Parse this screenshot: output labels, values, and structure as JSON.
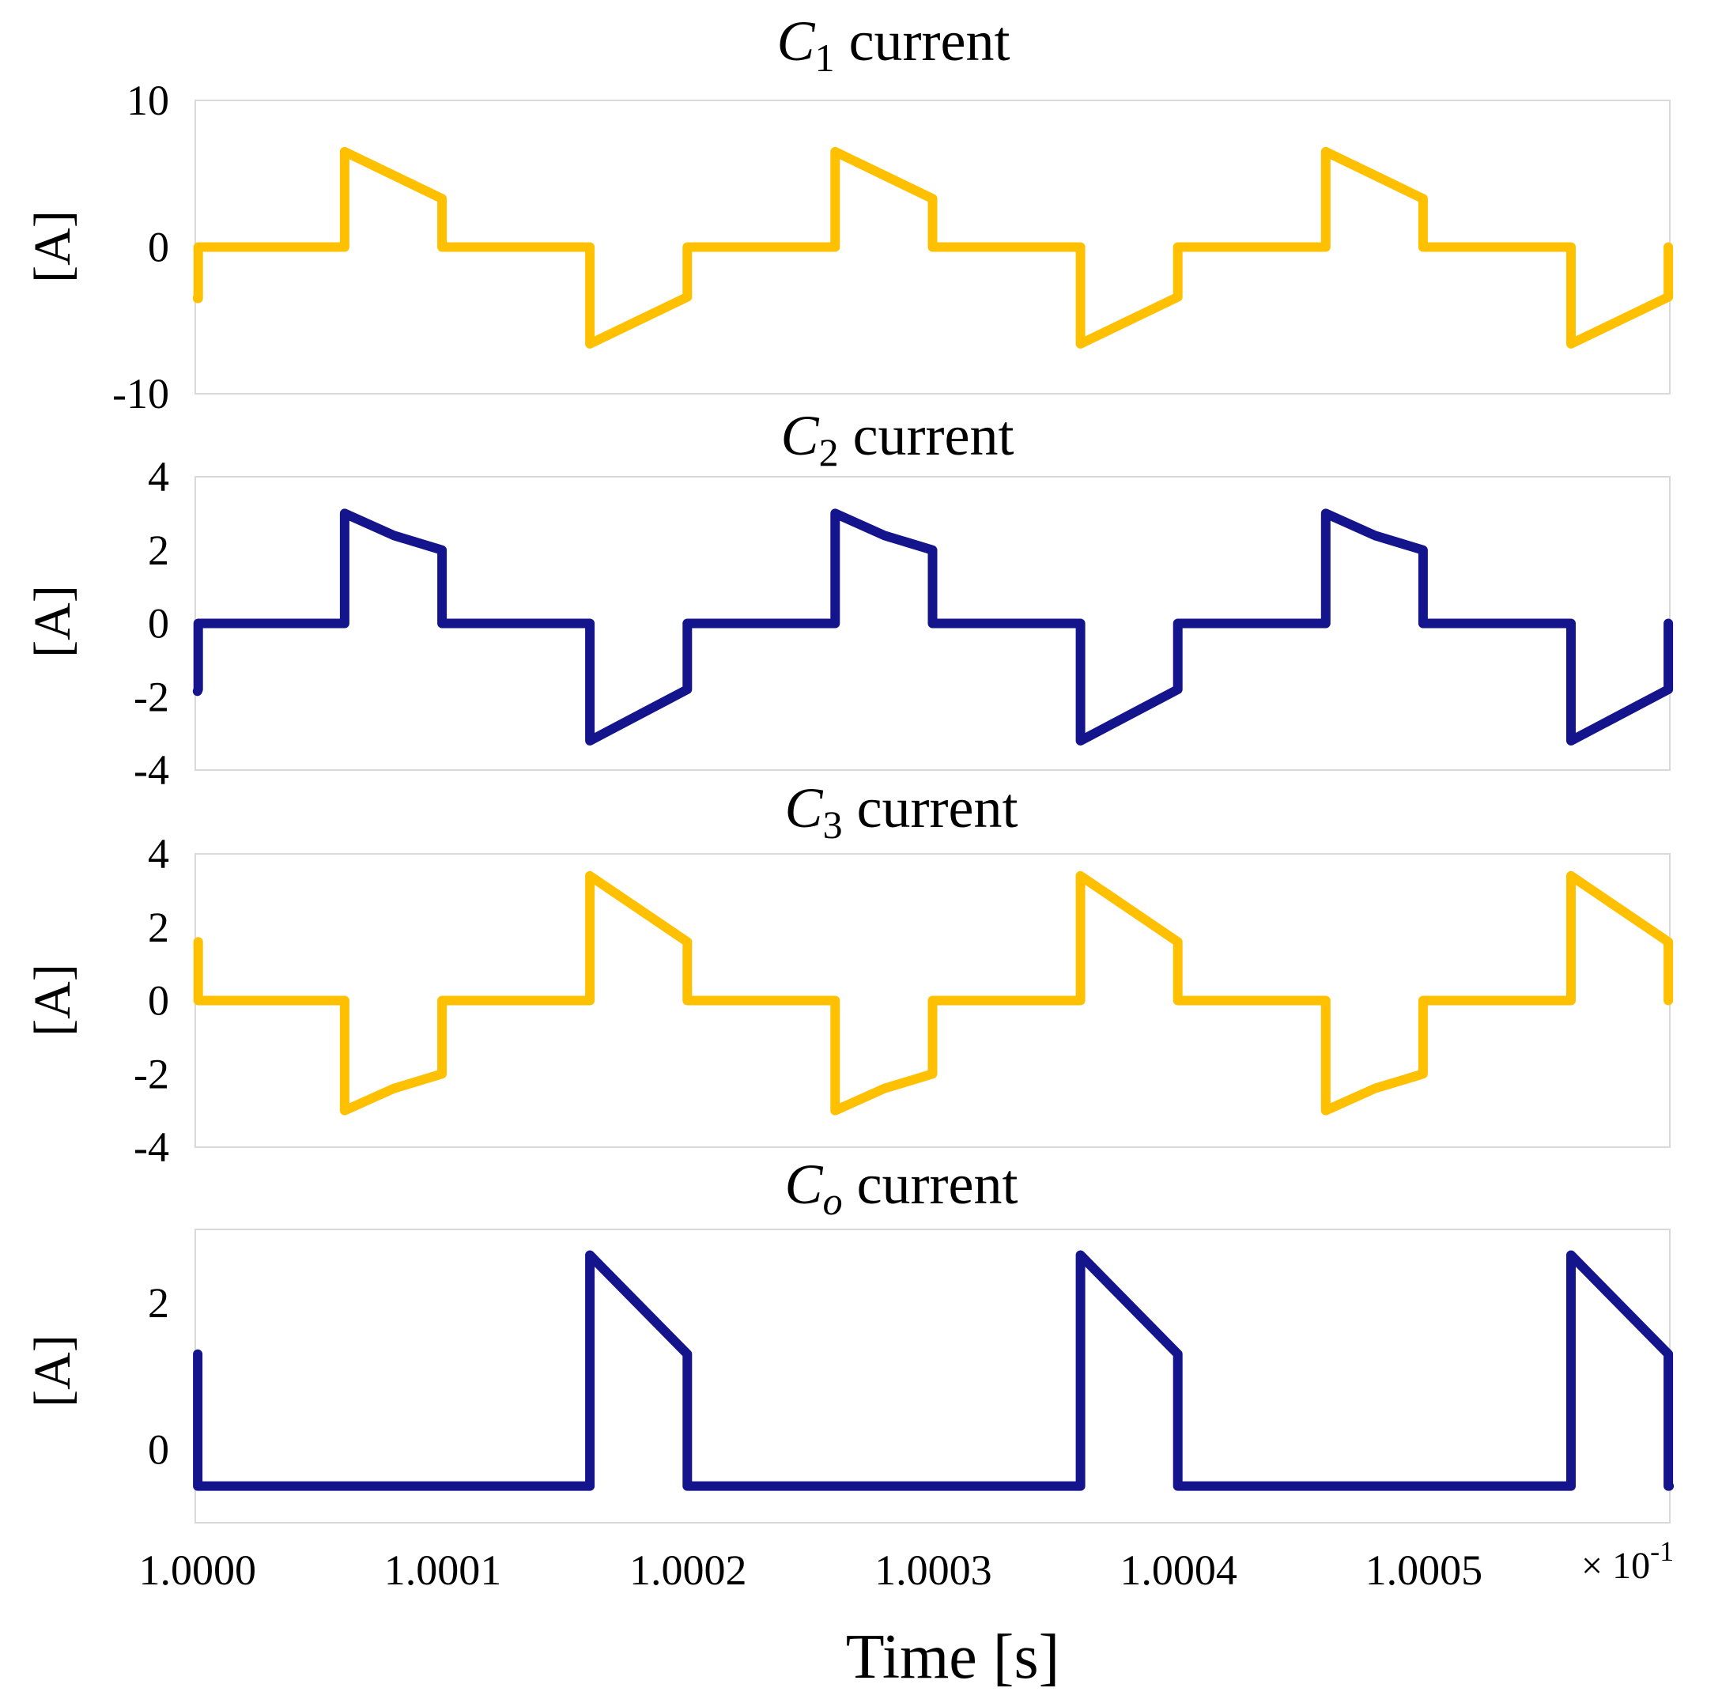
{
  "chart_data": [
    {
      "type": "line",
      "title": {
        "symbol": "C",
        "sub": "1",
        "sub_italic": false,
        "text": " current"
      },
      "ylabel": "[A]",
      "ylim": [
        -10,
        10
      ],
      "yticks": [
        10,
        0,
        -10
      ],
      "ytick_labels": [
        "10",
        "0",
        "-10"
      ],
      "color": "#FFC000",
      "series": [
        {
          "name": "C1 current",
          "x": [
            1.0,
            1.0000003,
            1.0000003,
            1.00006,
            1.00006,
            1.0000997,
            1.0000997,
            1.00016,
            1.00016,
            1.0001997,
            1.0001997,
            1.00026,
            1.00026,
            1.0002997,
            1.0002997,
            1.00036,
            1.00036,
            1.0003997,
            1.0003997,
            1.00046,
            1.00046,
            1.0004997,
            1.0004997,
            1.00056,
            1.00056,
            1.0005997,
            1.0005997
          ],
          "y": [
            -3.5,
            -3.5,
            0,
            0,
            6.5,
            3.3,
            0,
            0,
            -6.6,
            -3.4,
            0,
            0,
            6.5,
            3.3,
            0,
            0,
            -6.6,
            -3.4,
            0,
            0,
            6.5,
            3.3,
            0,
            0,
            -6.6,
            -3.4,
            0
          ]
        }
      ]
    },
    {
      "type": "line",
      "title": {
        "symbol": "C",
        "sub": "2",
        "sub_italic": false,
        "text": " current"
      },
      "ylabel": "[A]",
      "ylim": [
        -4,
        4
      ],
      "yticks": [
        4,
        2,
        0,
        -2,
        -4
      ],
      "ytick_labels": [
        "4",
        "2",
        "0",
        "-2",
        "-4"
      ],
      "color": "#14148C",
      "series": [
        {
          "name": "C2 current",
          "x": [
            1.0,
            1.0000003,
            1.0000003,
            1.00006,
            1.00006,
            1.00008,
            1.0000997,
            1.0000997,
            1.00016,
            1.00016,
            1.0001997,
            1.0001997,
            1.00026,
            1.00026,
            1.00028,
            1.0002997,
            1.0002997,
            1.00036,
            1.00036,
            1.0003997,
            1.0003997,
            1.00046,
            1.00046,
            1.00048,
            1.0004997,
            1.0004997,
            1.00056,
            1.00056,
            1.0005997,
            1.0005997
          ],
          "y": [
            -1.85,
            -1.8,
            0,
            0,
            3.0,
            2.4,
            2.0,
            0,
            0,
            -3.2,
            -1.8,
            0,
            0,
            3.0,
            2.4,
            2.0,
            0,
            0,
            -3.2,
            -1.8,
            0,
            0,
            3.0,
            2.4,
            2.0,
            0,
            0,
            -3.2,
            -1.8,
            0
          ]
        }
      ]
    },
    {
      "type": "line",
      "title": {
        "symbol": "C",
        "sub": "3",
        "sub_italic": false,
        "text": " current"
      },
      "ylabel": "[A]",
      "ylim": [
        -4,
        4
      ],
      "yticks": [
        4,
        2,
        0,
        -2,
        -4
      ],
      "ytick_labels": [
        "4",
        "2",
        "0",
        "-2",
        "-4"
      ],
      "color": "#FFC000",
      "series": [
        {
          "name": "C3 current",
          "x": [
            1.0000003,
            1.0000003,
            1.00006,
            1.00006,
            1.00008,
            1.0000997,
            1.0000997,
            1.00016,
            1.00016,
            1.0001997,
            1.0001997,
            1.00026,
            1.00026,
            1.00028,
            1.0002997,
            1.0002997,
            1.00036,
            1.00036,
            1.0003997,
            1.0003997,
            1.00046,
            1.00046,
            1.00048,
            1.0004997,
            1.0004997,
            1.00056,
            1.00056,
            1.0005997,
            1.0005997
          ],
          "y": [
            1.6,
            0,
            0,
            -3.0,
            -2.4,
            -2.0,
            0,
            0,
            3.4,
            1.6,
            0,
            0,
            -3.0,
            -2.4,
            -2.0,
            0,
            0,
            3.4,
            1.6,
            0,
            0,
            -3.0,
            -2.4,
            -2.0,
            0,
            0,
            3.4,
            1.6,
            0
          ]
        }
      ]
    },
    {
      "type": "line",
      "title": {
        "symbol": "C",
        "sub": "o",
        "sub_italic": true,
        "text": " current"
      },
      "ylabel": "[A]",
      "ylim": [
        -1,
        3
      ],
      "yticks": [
        2,
        0
      ],
      "ytick_labels": [
        "2",
        "0"
      ],
      "color": "#14148C",
      "series": [
        {
          "name": "Co current",
          "x": [
            1.0000001,
            1.0000001,
            1.00016,
            1.00016,
            1.0001997,
            1.0001997,
            1.00036,
            1.00036,
            1.0003997,
            1.0003997,
            1.00056,
            1.00056,
            1.0005997,
            1.0005997,
            1.0006
          ],
          "y": [
            1.3,
            -0.5,
            -0.5,
            2.65,
            1.3,
            -0.5,
            -0.5,
            2.65,
            1.3,
            -0.5,
            -0.5,
            2.65,
            1.3,
            -0.5,
            -0.5
          ]
        }
      ]
    }
  ],
  "x_axis": {
    "xlim": [
      0.9999991,
      1.0006003
    ],
    "ticks": [
      1.0,
      1.0001,
      1.0002,
      1.0003,
      1.0004,
      1.0005
    ],
    "tick_labels": [
      "1.0000",
      "1.0001",
      "1.0002",
      "1.0003",
      "1.0004",
      "1.0005"
    ],
    "multiplier_label": "× 10",
    "multiplier_exp": "-1",
    "xlabel": "Time [s]"
  }
}
